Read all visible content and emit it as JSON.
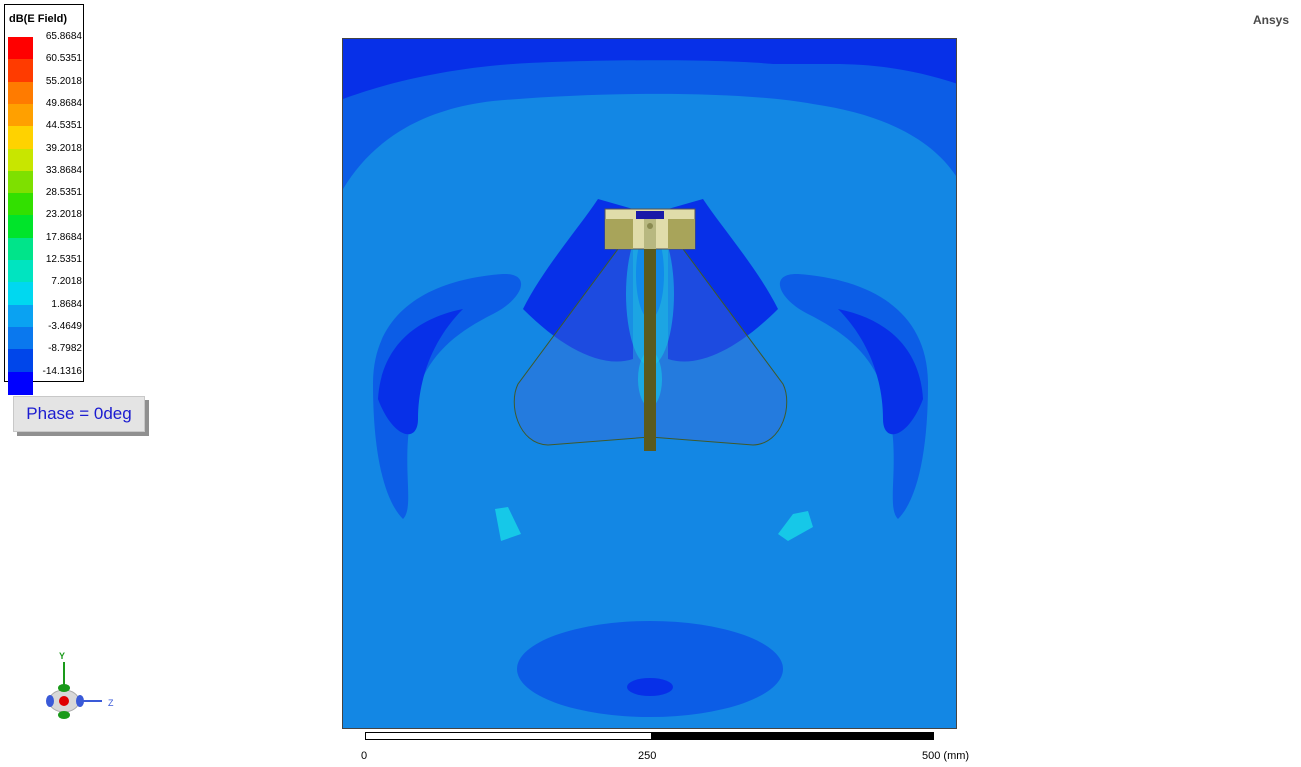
{
  "brand": "Ansys",
  "legend": {
    "title": "dB(E Field)",
    "entries": [
      {
        "label": "65.8684",
        "color": "#ff0000"
      },
      {
        "label": "60.5351",
        "color": "#ff3b00"
      },
      {
        "label": "55.2018",
        "color": "#ff7b00"
      },
      {
        "label": "49.8684",
        "color": "#ffa000"
      },
      {
        "label": "44.5351",
        "color": "#ffd200"
      },
      {
        "label": "39.2018",
        "color": "#c8e600"
      },
      {
        "label": "33.8684",
        "color": "#7ee000"
      },
      {
        "label": "28.5351",
        "color": "#32e000"
      },
      {
        "label": "23.2018",
        "color": "#00e42a"
      },
      {
        "label": "17.8684",
        "color": "#00e48a"
      },
      {
        "label": "12.5351",
        "color": "#00e4c0"
      },
      {
        "label": "7.2018",
        "color": "#00d8f0"
      },
      {
        "label": "1.8684",
        "color": "#0aa2f2"
      },
      {
        "label": "-3.4649",
        "color": "#0a78ee"
      },
      {
        "label": "-8.7982",
        "color": "#0046ea"
      },
      {
        "label": "-14.1316",
        "color": "#0000ff"
      }
    ]
  },
  "phase_label": "Phase = 0deg",
  "scale": {
    "ticks": [
      "0",
      "250",
      "500 (mm)"
    ]
  },
  "triad": {
    "y_label": "Y",
    "z_label": "Z"
  },
  "colors": {
    "background_field": "#1387e4",
    "mid_field": "#0c5de6",
    "low_field": "#0730e8",
    "cyan_field": "#16c8e8",
    "dipole": "#5a5a1e",
    "shield": "#e0dcaa"
  }
}
